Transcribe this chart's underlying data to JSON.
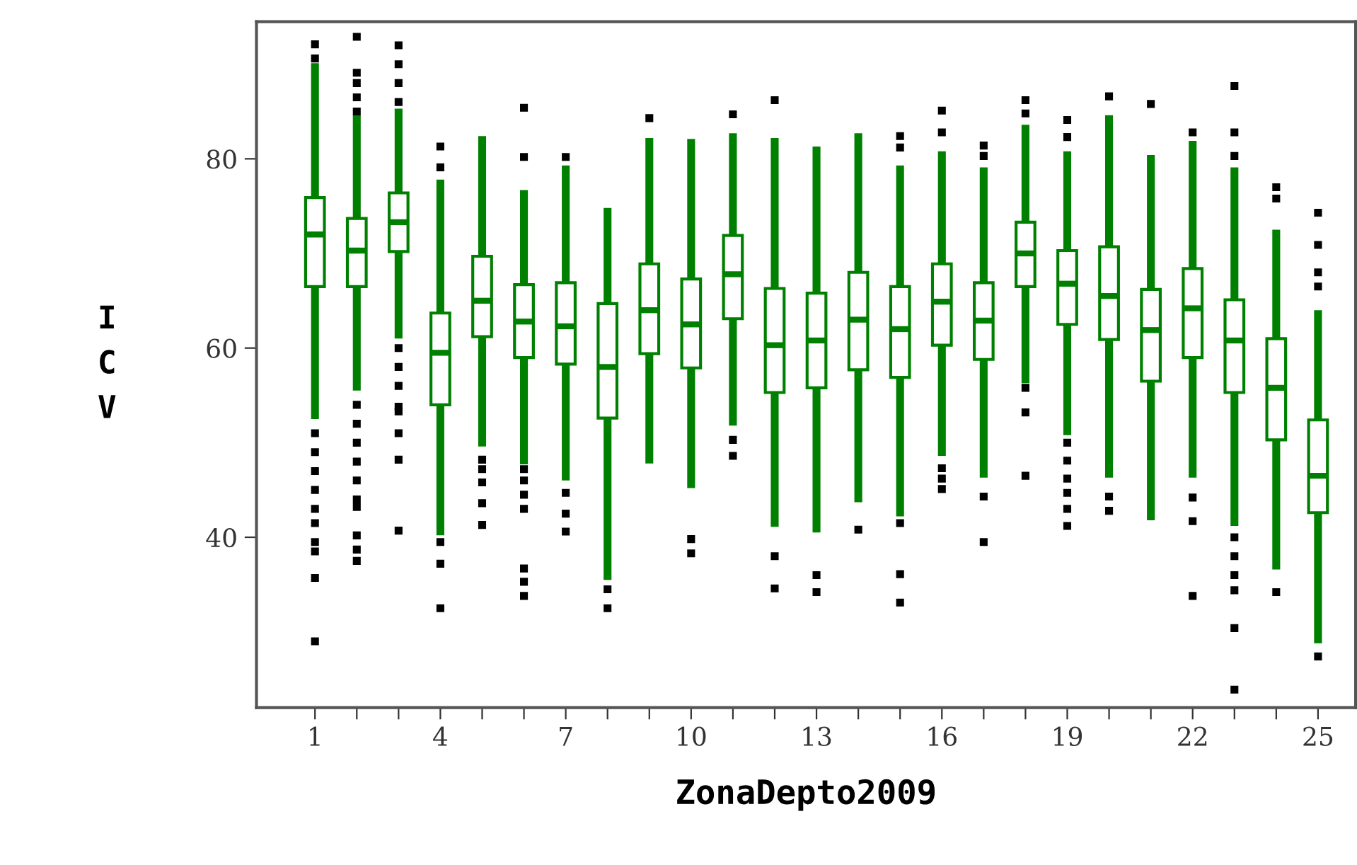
{
  "chart_data": {
    "type": "box",
    "xlabel": "ZonaDepto2009",
    "ylabel": "ICV",
    "categories": [
      "1",
      null,
      null,
      "4",
      null,
      null,
      "7",
      null,
      null,
      "10",
      null,
      null,
      "13",
      null,
      null,
      "16",
      null,
      null,
      "19",
      null,
      null,
      "22",
      null,
      null,
      "25"
    ],
    "ylim": [
      22,
      94.5
    ],
    "yticks": [
      40,
      60,
      80
    ],
    "color": "#008000",
    "grid": false,
    "legend": false,
    "boxes": [
      {
        "low": 52.5,
        "q1": 66.5,
        "median": 72.0,
        "q3": 75.9,
        "high": 90.1,
        "outliers": [
          92.1,
          90.6,
          51,
          49,
          47,
          45,
          43,
          41.5,
          39.5,
          38.5,
          35.7,
          29.0
        ]
      },
      {
        "low": 55.5,
        "q1": 66.5,
        "median": 70.3,
        "q3": 73.7,
        "high": 84.6,
        "outliers": [
          92.9,
          89.1,
          88,
          86.5,
          85,
          54,
          52,
          50,
          48,
          46,
          44,
          43.2,
          40.2,
          38.7,
          37.5
        ]
      },
      {
        "low": 61.0,
        "q1": 70.2,
        "median": 73.3,
        "q3": 76.4,
        "high": 85.3,
        "outliers": [
          92,
          90,
          88,
          86,
          60,
          58,
          56,
          53.8,
          53.3,
          51,
          48.2,
          40.7
        ]
      },
      {
        "low": 40.2,
        "q1": 54.0,
        "median": 59.5,
        "q3": 63.7,
        "high": 77.8,
        "outliers": [
          81.3,
          79.1,
          39.5,
          37.2,
          32.5
        ]
      },
      {
        "low": 49.6,
        "q1": 61.2,
        "median": 65.0,
        "q3": 69.7,
        "high": 82.4,
        "outliers": [
          48.2,
          47.2,
          45.8,
          43.6,
          41.3
        ]
      },
      {
        "low": 47.7,
        "q1": 59.0,
        "median": 62.8,
        "q3": 66.7,
        "high": 76.7,
        "outliers": [
          85.4,
          80.2,
          47.2,
          46,
          44.5,
          43,
          36.7,
          35.3,
          33.8
        ]
      },
      {
        "low": 46.0,
        "q1": 58.3,
        "median": 62.3,
        "q3": 66.9,
        "high": 79.3,
        "outliers": [
          80.2,
          44.7,
          42.5,
          40.6
        ]
      },
      {
        "low": 35.5,
        "q1": 52.6,
        "median": 58.0,
        "q3": 64.7,
        "high": 74.8,
        "outliers": [
          34.5,
          32.5
        ]
      },
      {
        "low": 47.8,
        "q1": 59.4,
        "median": 64.0,
        "q3": 68.9,
        "high": 82.2,
        "outliers": [
          84.3
        ]
      },
      {
        "low": 45.2,
        "q1": 57.9,
        "median": 62.5,
        "q3": 67.3,
        "high": 82.1,
        "outliers": [
          39.8,
          38.3
        ]
      },
      {
        "low": 51.8,
        "q1": 63.1,
        "median": 67.8,
        "q3": 71.9,
        "high": 82.7,
        "outliers": [
          84.7,
          50.3,
          48.6
        ]
      },
      {
        "low": 41.1,
        "q1": 55.3,
        "median": 60.3,
        "q3": 66.3,
        "high": 82.2,
        "outliers": [
          86.2,
          38.0,
          34.6
        ]
      },
      {
        "low": 40.5,
        "q1": 55.8,
        "median": 60.8,
        "q3": 65.8,
        "high": 81.3,
        "outliers": [
          36.0,
          34.2
        ]
      },
      {
        "low": 43.7,
        "q1": 57.7,
        "median": 63.0,
        "q3": 68.0,
        "high": 82.7,
        "outliers": [
          40.8
        ]
      },
      {
        "low": 42.2,
        "q1": 56.9,
        "median": 62.0,
        "q3": 66.5,
        "high": 79.3,
        "outliers": [
          82.4,
          81.2,
          41.5,
          36.1,
          33.1
        ]
      },
      {
        "low": 48.6,
        "q1": 60.3,
        "median": 64.9,
        "q3": 68.9,
        "high": 80.8,
        "outliers": [
          85.1,
          82.8,
          47.3,
          46.2,
          45.1
        ]
      },
      {
        "low": 46.3,
        "q1": 58.8,
        "median": 62.9,
        "q3": 66.9,
        "high": 79.1,
        "outliers": [
          81.4,
          80.3,
          44.3,
          39.5
        ]
      },
      {
        "low": 56.3,
        "q1": 66.5,
        "median": 70.0,
        "q3": 73.3,
        "high": 83.6,
        "outliers": [
          86.2,
          84.8,
          55.8,
          53.2,
          46.5
        ]
      },
      {
        "low": 50.8,
        "q1": 62.5,
        "median": 66.8,
        "q3": 70.3,
        "high": 80.8,
        "outliers": [
          84.1,
          82.3,
          50.0,
          48.1,
          46.2,
          44.7,
          43,
          41.2
        ]
      },
      {
        "low": 46.3,
        "q1": 60.9,
        "median": 65.5,
        "q3": 70.7,
        "high": 84.6,
        "outliers": [
          86.6,
          44.3,
          42.8
        ]
      },
      {
        "low": 41.8,
        "q1": 56.5,
        "median": 61.9,
        "q3": 66.2,
        "high": 80.4,
        "outliers": [
          85.8
        ]
      },
      {
        "low": 46.3,
        "q1": 59.0,
        "median": 64.2,
        "q3": 68.4,
        "high": 81.9,
        "outliers": [
          82.8,
          44.2,
          41.7,
          33.8
        ]
      },
      {
        "low": 41.2,
        "q1": 55.3,
        "median": 60.8,
        "q3": 65.1,
        "high": 79.1,
        "outliers": [
          87.7,
          82.8,
          80.3,
          40,
          38,
          36,
          34.4,
          30.4,
          23.9
        ]
      },
      {
        "low": 36.6,
        "q1": 50.3,
        "median": 55.8,
        "q3": 61.0,
        "high": 72.5,
        "outliers": [
          77.0,
          75.8,
          34.2
        ]
      },
      {
        "low": 28.8,
        "q1": 42.6,
        "median": 46.5,
        "q3": 52.4,
        "high": 64.0,
        "outliers": [
          74.3,
          70.9,
          68,
          66.5,
          27.4
        ]
      }
    ]
  }
}
